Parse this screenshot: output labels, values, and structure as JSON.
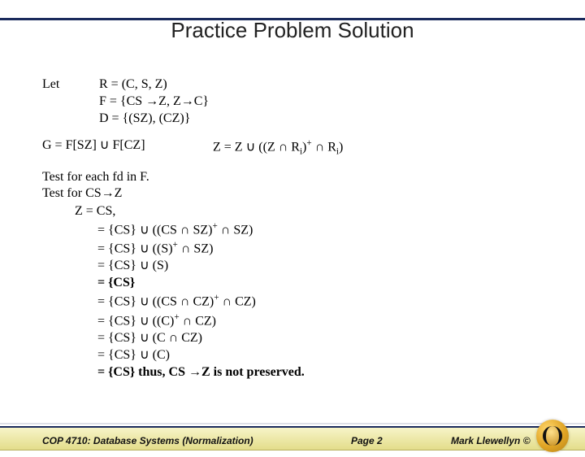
{
  "title": "Practice Problem Solution",
  "let_label": "Let",
  "let_lines": {
    "r": "R = (C, S, Z)",
    "f": "F = {CS →Z, Z→C}",
    "d": "D = {(SZ), (CZ)}"
  },
  "g_line": "G = F[SZ] ∪ F[CZ]",
  "z_line_prefix": "Z = Z ∪ ((Z ∩ R",
  "z_line_mid": ")",
  "z_line_suffix": " ∩ R",
  "z_line_end": ")",
  "test1": "Test for each fd in F.",
  "test2": "Test for CS→Z",
  "steps": {
    "s0": "Z = CS,",
    "s1_a": "= {CS} ∪ ((CS ∩ SZ)",
    "s1_b": " ∩ SZ)",
    "s2_a": "= {CS} ∪ ((S)",
    "s2_b": " ∩ SZ)",
    "s3": "= {CS} ∪ (S)",
    "s4": "= {CS}",
    "s5_a": "= {CS} ∪ ((CS ∩ CZ)",
    "s5_b": " ∩ CZ)",
    "s6_a": "= {CS} ∪ ((C)",
    "s6_b": " ∩ CZ)",
    "s7": "= {CS} ∪ (C ∩ CZ)",
    "s8": "= {CS} ∪ (C)",
    "s9": "= {CS}   thus, CS →Z is not preserved."
  },
  "footer": {
    "left": "COP 4710: Database Systems  (Normalization)",
    "mid": "Page 2",
    "right": "Mark Llewellyn ©"
  },
  "colors": {
    "rule": "#1a2a5c",
    "band_top": "#f7f4c8",
    "band_bottom": "#e3dd8a"
  }
}
